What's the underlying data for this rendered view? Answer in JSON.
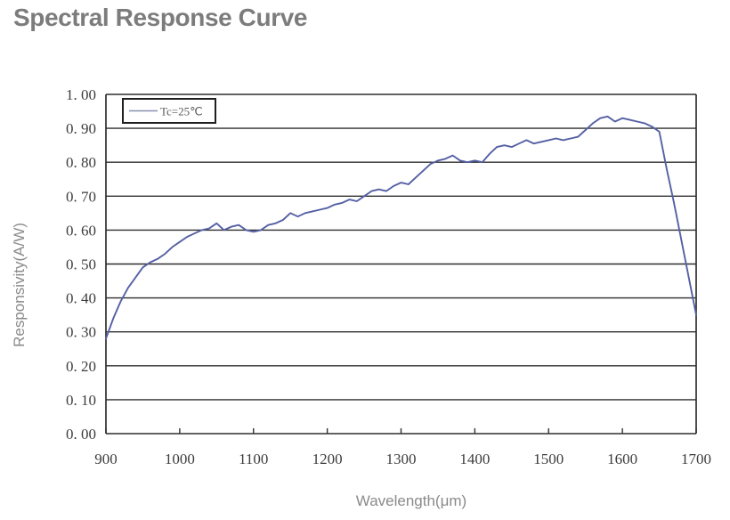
{
  "header": {
    "title": "Spectral Response Curve"
  },
  "chart_data": {
    "type": "line",
    "title": "Spectral Response Curve",
    "xlabel": "Wavelength(μm)",
    "ylabel": "Responsivity(A/W)",
    "xlim": [
      900,
      1700
    ],
    "ylim": [
      0.0,
      1.0
    ],
    "x_ticks": [
      900,
      1000,
      1100,
      1200,
      1300,
      1400,
      1500,
      1600,
      1700
    ],
    "y_ticks": [
      1.0,
      0.9,
      0.8,
      0.7,
      0.6,
      0.5,
      0.4,
      0.3,
      0.2,
      0.1,
      0.0
    ],
    "y_tick_labels": [
      "1. 00",
      "0. 90",
      "0. 80",
      "0. 70",
      "0. 60",
      "0. 50",
      "0. 40",
      "0. 30",
      "0. 20",
      "0. 10",
      "0. 00"
    ],
    "grid": "horizontal-only",
    "legend": {
      "position": "top-left-inside",
      "entries": [
        "Tc=25℃"
      ]
    },
    "series": [
      {
        "name": "Tc=25℃",
        "color": "#5560a4",
        "x": [
          900,
          910,
          920,
          930,
          940,
          950,
          960,
          970,
          980,
          990,
          1000,
          1010,
          1020,
          1030,
          1040,
          1050,
          1060,
          1070,
          1080,
          1090,
          1100,
          1110,
          1120,
          1130,
          1140,
          1150,
          1160,
          1170,
          1180,
          1190,
          1200,
          1210,
          1220,
          1230,
          1240,
          1250,
          1260,
          1270,
          1280,
          1290,
          1300,
          1310,
          1320,
          1330,
          1340,
          1350,
          1360,
          1370,
          1380,
          1390,
          1400,
          1410,
          1420,
          1430,
          1440,
          1450,
          1460,
          1470,
          1480,
          1490,
          1500,
          1510,
          1520,
          1530,
          1540,
          1550,
          1560,
          1570,
          1580,
          1590,
          1600,
          1610,
          1620,
          1630,
          1640,
          1650,
          1660,
          1670,
          1680,
          1690,
          1700
        ],
        "y": [
          0.28,
          0.34,
          0.39,
          0.43,
          0.46,
          0.49,
          0.505,
          0.515,
          0.53,
          0.55,
          0.565,
          0.58,
          0.59,
          0.6,
          0.605,
          0.62,
          0.6,
          0.61,
          0.615,
          0.6,
          0.595,
          0.6,
          0.615,
          0.62,
          0.63,
          0.65,
          0.64,
          0.65,
          0.655,
          0.66,
          0.665,
          0.675,
          0.68,
          0.69,
          0.685,
          0.7,
          0.715,
          0.72,
          0.715,
          0.73,
          0.74,
          0.735,
          0.755,
          0.775,
          0.795,
          0.805,
          0.81,
          0.82,
          0.805,
          0.8,
          0.805,
          0.8,
          0.825,
          0.845,
          0.85,
          0.845,
          0.855,
          0.865,
          0.855,
          0.86,
          0.865,
          0.87,
          0.865,
          0.87,
          0.875,
          0.895,
          0.915,
          0.93,
          0.935,
          0.92,
          0.93,
          0.925,
          0.92,
          0.915,
          0.905,
          0.89,
          0.78,
          0.68,
          0.57,
          0.46,
          0.35
        ]
      }
    ]
  },
  "colors": {
    "background": "#ffffff",
    "title_text": "#7c7c7c",
    "axis_title_text": "#8a8a8a",
    "tick_text": "#3d3d3d",
    "gridline": "#2f2f2f",
    "plot_border": "#2f2f2f",
    "curve": "#5560a4",
    "legend_border": "#1f1f1f",
    "legend_line_sample": "#8890b0"
  }
}
